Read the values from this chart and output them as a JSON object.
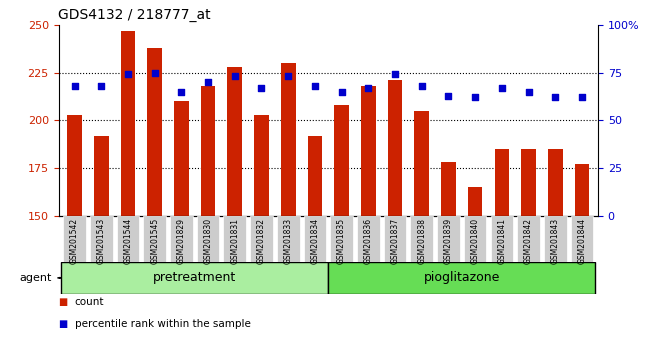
{
  "title": "GDS4132 / 218777_at",
  "categories": [
    "GSM201542",
    "GSM201543",
    "GSM201544",
    "GSM201545",
    "GSM201829",
    "GSM201830",
    "GSM201831",
    "GSM201832",
    "GSM201833",
    "GSM201834",
    "GSM201835",
    "GSM201836",
    "GSM201837",
    "GSM201838",
    "GSM201839",
    "GSM201840",
    "GSM201841",
    "GSM201842",
    "GSM201843",
    "GSM201844"
  ],
  "bar_values": [
    203,
    192,
    247,
    238,
    210,
    218,
    228,
    203,
    230,
    192,
    208,
    218,
    221,
    205,
    178,
    165,
    185,
    185,
    185,
    177
  ],
  "percentile_values": [
    68,
    68,
    74,
    75,
    65,
    70,
    73,
    67,
    73,
    68,
    65,
    67,
    74,
    68,
    63,
    62,
    67,
    65,
    62,
    62
  ],
  "bar_color": "#cc2200",
  "dot_color": "#0000cc",
  "ylim_left": [
    150,
    250
  ],
  "ylim_right": [
    0,
    100
  ],
  "yticks_left": [
    150,
    175,
    200,
    225,
    250
  ],
  "yticks_right": [
    0,
    25,
    50,
    75,
    100
  ],
  "ytick_labels_right": [
    "0",
    "25",
    "50",
    "75",
    "100%"
  ],
  "grid_yticks": [
    175,
    200,
    225
  ],
  "group1_label": "pretreatment",
  "group2_label": "pioglitazone",
  "group1_count": 10,
  "group2_count": 10,
  "agent_label": "agent",
  "legend_bar_label": "count",
  "legend_dot_label": "percentile rank within the sample",
  "group1_color": "#aaeea0",
  "group2_color": "#66dd55",
  "tick_bg_color": "#cccccc",
  "bar_color_left": "#cc2200",
  "tick_label_color_left": "#cc2200",
  "tick_label_color_right": "#0000cc",
  "bar_bottom": 150,
  "bar_width": 0.55
}
